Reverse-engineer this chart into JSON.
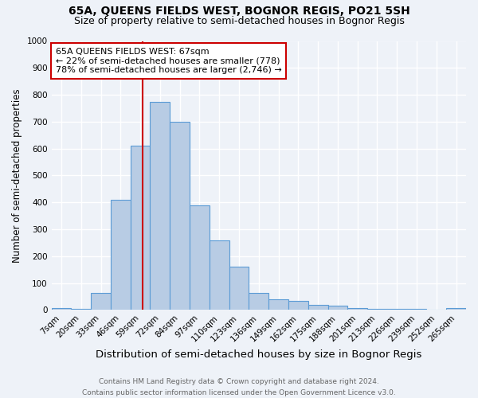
{
  "title1": "65A, QUEENS FIELDS WEST, BOGNOR REGIS, PO21 5SH",
  "title2": "Size of property relative to semi-detached houses in Bognor Regis",
  "xlabel": "Distribution of semi-detached houses by size in Bognor Regis",
  "ylabel": "Number of semi-detached properties",
  "bin_labels": [
    "7sqm",
    "20sqm",
    "33sqm",
    "46sqm",
    "59sqm",
    "72sqm",
    "84sqm",
    "97sqm",
    "110sqm",
    "123sqm",
    "136sqm",
    "149sqm",
    "162sqm",
    "175sqm",
    "188sqm",
    "201sqm",
    "213sqm",
    "226sqm",
    "239sqm",
    "252sqm",
    "265sqm"
  ],
  "bar_heights": [
    7,
    5,
    62,
    410,
    610,
    775,
    700,
    390,
    258,
    160,
    62,
    40,
    35,
    20,
    15,
    8,
    5,
    4,
    3,
    2,
    7
  ],
  "bar_color": "#b8cce4",
  "bar_edge_color": "#5b9bd5",
  "annotation_line1": "65A QUEENS FIELDS WEST: 67sqm",
  "annotation_line2": "← 22% of semi-detached houses are smaller (778)",
  "annotation_line3": "78% of semi-detached houses are larger (2,746) →",
  "red_line_color": "#cc0000",
  "annotation_box_color": "#ffffff",
  "annotation_box_edge": "#cc0000",
  "footer1": "Contains HM Land Registry data © Crown copyright and database right 2024.",
  "footer2": "Contains public sector information licensed under the Open Government Licence v3.0.",
  "ylim": [
    0,
    1000
  ],
  "yticks": [
    0,
    100,
    200,
    300,
    400,
    500,
    600,
    700,
    800,
    900,
    1000
  ],
  "background_color": "#eef2f8",
  "grid_color": "#ffffff",
  "title1_fontsize": 10,
  "title2_fontsize": 9,
  "xlabel_fontsize": 9.5,
  "ylabel_fontsize": 8.5,
  "tick_fontsize": 7.5,
  "footer_fontsize": 6.5,
  "annotation_fontsize": 8
}
